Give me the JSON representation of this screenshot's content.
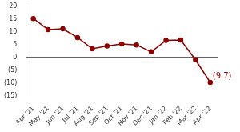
{
  "chart_data": {
    "type": "line",
    "categories": [
      "Apr '21",
      "May '21",
      "Jun '21",
      "Jul '21",
      "Aug '21",
      "Sep '21",
      "Oct '21",
      "Nov '21",
      "Dec '21",
      "Jan '22",
      "Feb '22",
      "Mar '22",
      "Apr '22"
    ],
    "values": [
      15.2,
      10.9,
      11.2,
      7.8,
      3.4,
      4.5,
      5.3,
      4.9,
      2.2,
      6.7,
      6.8,
      -0.9,
      -9.7
    ],
    "color": "#8b0000",
    "marker": "circle",
    "ylim": [
      -15,
      20
    ],
    "yticks": [
      {
        "value": -15,
        "label": "(15)"
      },
      {
        "value": -10,
        "label": "(10)"
      },
      {
        "value": -5,
        "label": "(5)"
      },
      0,
      5,
      10,
      15,
      20
    ],
    "grid": false,
    "reference_lines": [
      {
        "y": 0,
        "color": "#000000"
      }
    ],
    "annotations": [
      {
        "text": "(9.7)",
        "x": "Apr '22",
        "y": -9.7
      }
    ]
  }
}
